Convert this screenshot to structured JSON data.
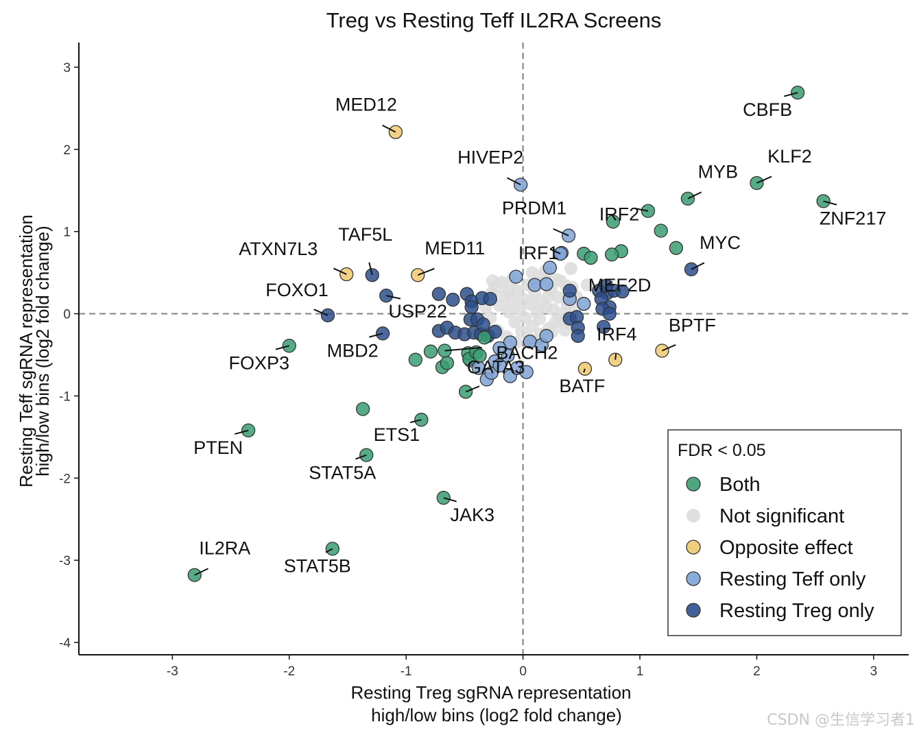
{
  "chart_data": {
    "type": "scatter",
    "title": "Treg vs Resting Teff IL2RA Screens",
    "xlabel_line1": "Resting Treg sgRNA representation",
    "xlabel_line2": "high/low bins (log2 fold change)",
    "ylabel_line1": "Resting Teff sgRNA representation",
    "ylabel_line2": "high/low bins (log2 fold change)",
    "xlim": [
      -3.8,
      3.3
    ],
    "ylim": [
      -4.15,
      3.3
    ],
    "xticks": [
      -3,
      -2,
      -1,
      0,
      1,
      2,
      3
    ],
    "yticks": [
      -4,
      -3,
      -2,
      -1,
      0,
      1,
      2,
      3
    ],
    "reference_lines": {
      "x": 0,
      "y": 0
    },
    "legend": {
      "title": "FDR < 0.05",
      "position": "bottom-right",
      "entries": [
        {
          "key": "both",
          "label": "Both",
          "color": "#3a9e72"
        },
        {
          "key": "ns",
          "label": "Not significant",
          "color": "#dcdcdc"
        },
        {
          "key": "opp",
          "label": "Opposite effect",
          "color": "#f0c96e"
        },
        {
          "key": "teff",
          "label": "Resting Teff only",
          "color": "#7ea3d6"
        },
        {
          "key": "treg",
          "label": "Resting Treg only",
          "color": "#2d4f8c"
        }
      ]
    },
    "labeled_points": [
      {
        "label": "IL2RA",
        "x": -2.81,
        "y": -3.18,
        "group": "both"
      },
      {
        "label": "STAT5B",
        "x": -1.63,
        "y": -2.86,
        "group": "both"
      },
      {
        "label": "JAK3",
        "x": -0.68,
        "y": -2.24,
        "group": "both"
      },
      {
        "label": "PTEN",
        "x": -2.35,
        "y": -1.42,
        "group": "both"
      },
      {
        "label": "STAT5A",
        "x": -1.34,
        "y": -1.72,
        "group": "both"
      },
      {
        "label": "ETS1",
        "x": -0.87,
        "y": -1.29,
        "group": "both"
      },
      {
        "label": "FOXP3",
        "x": -2.0,
        "y": -0.39,
        "group": "both"
      },
      {
        "label": "MBD2",
        "x": -1.2,
        "y": -0.24,
        "group": "treg"
      },
      {
        "label": "FOXO1",
        "x": -1.67,
        "y": -0.02,
        "group": "treg"
      },
      {
        "label": "USP22",
        "x": -1.17,
        "y": 0.22,
        "group": "treg"
      },
      {
        "label": "ATXN7L3",
        "x": -1.51,
        "y": 0.48,
        "group": "opp"
      },
      {
        "label": "TAF5L",
        "x": -1.29,
        "y": 0.47,
        "group": "treg"
      },
      {
        "label": "MED11",
        "x": -0.9,
        "y": 0.47,
        "group": "opp"
      },
      {
        "label": "MED12",
        "x": -1.09,
        "y": 2.21,
        "group": "opp"
      },
      {
        "label": "HIVEP2",
        "x": -0.02,
        "y": 1.57,
        "group": "teff"
      },
      {
        "label": "PRDM1",
        "x": 0.39,
        "y": 0.95,
        "group": "teff"
      },
      {
        "label": "IRF1",
        "x": 0.32,
        "y": 0.73,
        "group": "teff"
      },
      {
        "label": "MEF2D",
        "x": 0.71,
        "y": 0.34,
        "group": "treg"
      },
      {
        "label": "BACH2",
        "x": -0.67,
        "y": -0.45,
        "group": "both"
      },
      {
        "label": "GATA3",
        "x": -0.49,
        "y": -0.95,
        "group": "both"
      },
      {
        "label": "BATF",
        "x": 0.53,
        "y": -0.67,
        "group": "opp"
      },
      {
        "label": "IRF4",
        "x": 0.79,
        "y": -0.56,
        "group": "opp"
      },
      {
        "label": "BPTF",
        "x": 1.19,
        "y": -0.45,
        "group": "opp"
      },
      {
        "label": "MYC",
        "x": 1.44,
        "y": 0.54,
        "group": "treg"
      },
      {
        "label": "IRF2",
        "x": 1.07,
        "y": 1.25,
        "group": "both"
      },
      {
        "label": "MYB",
        "x": 1.41,
        "y": 1.4,
        "group": "both"
      },
      {
        "label": "KLF2",
        "x": 2.0,
        "y": 1.59,
        "group": "both"
      },
      {
        "label": "ZNF217",
        "x": 2.57,
        "y": 1.37,
        "group": "both"
      },
      {
        "label": "CBFB",
        "x": 2.35,
        "y": 2.69,
        "group": "both"
      }
    ],
    "points": [
      {
        "x": 0.77,
        "y": 1.12,
        "group": "both"
      },
      {
        "x": 1.18,
        "y": 1.01,
        "group": "both"
      },
      {
        "x": 1.31,
        "y": 0.8,
        "group": "both"
      },
      {
        "x": 0.84,
        "y": 0.76,
        "group": "both"
      },
      {
        "x": 0.76,
        "y": 0.72,
        "group": "both"
      },
      {
        "x": 0.52,
        "y": 0.73,
        "group": "both"
      },
      {
        "x": 0.58,
        "y": 0.68,
        "group": "both"
      },
      {
        "x": -1.37,
        "y": -1.16,
        "group": "both"
      },
      {
        "x": -0.92,
        "y": -0.56,
        "group": "both"
      },
      {
        "x": -0.79,
        "y": -0.46,
        "group": "both"
      },
      {
        "x": -0.69,
        "y": -0.65,
        "group": "both"
      },
      {
        "x": -0.65,
        "y": -0.6,
        "group": "both"
      },
      {
        "x": -0.47,
        "y": -0.48,
        "group": "both"
      },
      {
        "x": -0.46,
        "y": -0.55,
        "group": "both"
      },
      {
        "x": -0.4,
        "y": -0.47,
        "group": "both"
      },
      {
        "x": -0.37,
        "y": -0.51,
        "group": "both"
      },
      {
        "x": -0.33,
        "y": -0.29,
        "group": "both"
      },
      {
        "x": 0.33,
        "y": 0.74,
        "group": "teff"
      },
      {
        "x": 0.23,
        "y": 0.56,
        "group": "teff"
      },
      {
        "x": -0.06,
        "y": 0.45,
        "group": "teff"
      },
      {
        "x": 0.1,
        "y": 0.35,
        "group": "teff"
      },
      {
        "x": 0.2,
        "y": 0.36,
        "group": "teff"
      },
      {
        "x": 0.52,
        "y": 0.12,
        "group": "teff"
      },
      {
        "x": 0.4,
        "y": 0.18,
        "group": "teff"
      },
      {
        "x": -0.45,
        "y": -0.57,
        "group": "teff"
      },
      {
        "x": -0.38,
        "y": -0.66,
        "group": "teff"
      },
      {
        "x": -0.31,
        "y": -0.8,
        "group": "teff"
      },
      {
        "x": -0.27,
        "y": -0.72,
        "group": "teff"
      },
      {
        "x": -0.24,
        "y": -0.58,
        "group": "teff"
      },
      {
        "x": -0.2,
        "y": -0.63,
        "group": "teff"
      },
      {
        "x": -0.13,
        "y": -0.51,
        "group": "teff"
      },
      {
        "x": -0.11,
        "y": -0.76,
        "group": "teff"
      },
      {
        "x": -0.05,
        "y": -0.66,
        "group": "teff"
      },
      {
        "x": 0.03,
        "y": -0.71,
        "group": "teff"
      },
      {
        "x": 0.06,
        "y": -0.34,
        "group": "teff"
      },
      {
        "x": 0.16,
        "y": -0.38,
        "group": "teff"
      },
      {
        "x": 0.2,
        "y": -0.27,
        "group": "teff"
      },
      {
        "x": -0.11,
        "y": -0.35,
        "group": "teff"
      },
      {
        "x": -0.2,
        "y": -0.42,
        "group": "teff"
      },
      {
        "x": -0.72,
        "y": 0.24,
        "group": "treg"
      },
      {
        "x": -0.6,
        "y": 0.17,
        "group": "treg"
      },
      {
        "x": -0.48,
        "y": 0.24,
        "group": "treg"
      },
      {
        "x": -0.44,
        "y": 0.15,
        "group": "treg"
      },
      {
        "x": -0.44,
        "y": 0.08,
        "group": "treg"
      },
      {
        "x": -0.35,
        "y": 0.19,
        "group": "treg"
      },
      {
        "x": -0.28,
        "y": 0.18,
        "group": "treg"
      },
      {
        "x": -0.45,
        "y": -0.07,
        "group": "treg"
      },
      {
        "x": -0.72,
        "y": -0.21,
        "group": "treg"
      },
      {
        "x": -0.65,
        "y": -0.17,
        "group": "treg"
      },
      {
        "x": -0.58,
        "y": -0.23,
        "group": "treg"
      },
      {
        "x": -0.5,
        "y": -0.25,
        "group": "treg"
      },
      {
        "x": -0.42,
        "y": -0.23,
        "group": "treg"
      },
      {
        "x": -0.36,
        "y": -0.25,
        "group": "treg"
      },
      {
        "x": -0.3,
        "y": -0.27,
        "group": "treg"
      },
      {
        "x": -0.24,
        "y": -0.22,
        "group": "treg"
      },
      {
        "x": -0.39,
        "y": -0.07,
        "group": "treg"
      },
      {
        "x": -0.34,
        "y": -0.13,
        "group": "treg"
      },
      {
        "x": 0.65,
        "y": 0.28,
        "group": "treg"
      },
      {
        "x": 0.72,
        "y": 0.25,
        "group": "treg"
      },
      {
        "x": 0.78,
        "y": 0.28,
        "group": "treg"
      },
      {
        "x": 0.85,
        "y": 0.27,
        "group": "treg"
      },
      {
        "x": 0.67,
        "y": 0.18,
        "group": "treg"
      },
      {
        "x": 0.74,
        "y": 0.08,
        "group": "treg"
      },
      {
        "x": 0.68,
        "y": 0.06,
        "group": "treg"
      },
      {
        "x": 0.74,
        "y": 0.0,
        "group": "treg"
      },
      {
        "x": 0.69,
        "y": -0.16,
        "group": "treg"
      },
      {
        "x": 0.4,
        "y": -0.06,
        "group": "treg"
      },
      {
        "x": 0.46,
        "y": -0.04,
        "group": "treg"
      },
      {
        "x": 0.47,
        "y": -0.17,
        "group": "treg"
      },
      {
        "x": 0.47,
        "y": -0.27,
        "group": "treg"
      },
      {
        "x": 0.4,
        "y": 0.28,
        "group": "treg"
      },
      {
        "x": -0.27,
        "y": 0.25,
        "group": "ns"
      },
      {
        "x": -0.2,
        "y": 0.1,
        "group": "ns"
      },
      {
        "x": -0.16,
        "y": 0.22,
        "group": "ns"
      },
      {
        "x": -0.12,
        "y": 0.02,
        "group": "ns"
      },
      {
        "x": -0.1,
        "y": 0.15,
        "group": "ns"
      },
      {
        "x": -0.07,
        "y": -0.1,
        "group": "ns"
      },
      {
        "x": -0.05,
        "y": 0.28,
        "group": "ns"
      },
      {
        "x": -0.03,
        "y": 0.05,
        "group": "ns"
      },
      {
        "x": 0.0,
        "y": 0.18,
        "group": "ns"
      },
      {
        "x": 0.02,
        "y": -0.05,
        "group": "ns"
      },
      {
        "x": 0.04,
        "y": 0.35,
        "group": "ns"
      },
      {
        "x": 0.06,
        "y": 0.12,
        "group": "ns"
      },
      {
        "x": 0.08,
        "y": -0.15,
        "group": "ns"
      },
      {
        "x": 0.1,
        "y": 0.25,
        "group": "ns"
      },
      {
        "x": 0.12,
        "y": 0.02,
        "group": "ns"
      },
      {
        "x": 0.14,
        "y": -0.06,
        "group": "ns"
      },
      {
        "x": 0.16,
        "y": 0.15,
        "group": "ns"
      },
      {
        "x": 0.18,
        "y": 0.45,
        "group": "ns"
      },
      {
        "x": 0.2,
        "y": 0.08,
        "group": "ns"
      },
      {
        "x": 0.22,
        "y": -0.18,
        "group": "ns"
      },
      {
        "x": 0.24,
        "y": 0.3,
        "group": "ns"
      },
      {
        "x": 0.26,
        "y": 0.05,
        "group": "ns"
      },
      {
        "x": 0.28,
        "y": -0.1,
        "group": "ns"
      },
      {
        "x": 0.3,
        "y": 0.2,
        "group": "ns"
      },
      {
        "x": 0.32,
        "y": 0.4,
        "group": "ns"
      },
      {
        "x": 0.34,
        "y": 0.0,
        "group": "ns"
      },
      {
        "x": 0.36,
        "y": -0.2,
        "group": "ns"
      },
      {
        "x": 0.38,
        "y": 0.12,
        "group": "ns"
      },
      {
        "x": 0.42,
        "y": 0.32,
        "group": "ns"
      },
      {
        "x": 0.44,
        "y": 0.05,
        "group": "ns"
      },
      {
        "x": -0.28,
        "y": -0.05,
        "group": "ns"
      },
      {
        "x": -0.22,
        "y": -0.2,
        "group": "ns"
      },
      {
        "x": -0.18,
        "y": 0.38,
        "group": "ns"
      },
      {
        "x": -0.14,
        "y": -0.28,
        "group": "ns"
      },
      {
        "x": -0.09,
        "y": 0.42,
        "group": "ns"
      },
      {
        "x": -0.01,
        "y": -0.22,
        "group": "ns"
      },
      {
        "x": 0.05,
        "y": -0.3,
        "group": "ns"
      },
      {
        "x": 0.11,
        "y": 0.38,
        "group": "ns"
      },
      {
        "x": 0.15,
        "y": -0.25,
        "group": "ns"
      },
      {
        "x": 0.25,
        "y": -0.22,
        "group": "ns"
      },
      {
        "x": 0.33,
        "y": -0.08,
        "group": "ns"
      },
      {
        "x": 0.08,
        "y": 0.5,
        "group": "ns"
      },
      {
        "x": -0.32,
        "y": 0.08,
        "group": "ns"
      },
      {
        "x": -0.24,
        "y": 0.32,
        "group": "ns"
      },
      {
        "x": 0.4,
        "y": -0.12,
        "group": "ns"
      },
      {
        "x": 0.46,
        "y": 0.2,
        "group": "ns"
      },
      {
        "x": 0.55,
        "y": 0.35,
        "group": "ns"
      },
      {
        "x": 0.41,
        "y": 0.55,
        "group": "ns"
      },
      {
        "x": 0.19,
        "y": 0.52,
        "group": "ns"
      },
      {
        "x": -0.26,
        "y": 0.4,
        "group": "ns"
      },
      {
        "x": 0.28,
        "y": 0.42,
        "group": "ns"
      },
      {
        "x": 0.37,
        "y": 0.34,
        "group": "ns"
      },
      {
        "x": -0.06,
        "y": -0.35,
        "group": "ns"
      },
      {
        "x": 0.12,
        "y": -0.32,
        "group": "ns"
      },
      {
        "x": 0.22,
        "y": 0.22,
        "group": "ns"
      },
      {
        "x": -0.12,
        "y": 0.28,
        "group": "ns"
      }
    ]
  },
  "watermark": "CSDN @生信学习者1"
}
